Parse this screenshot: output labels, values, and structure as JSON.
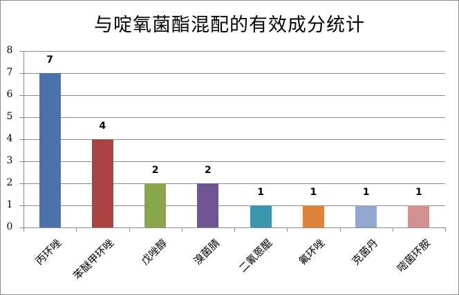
{
  "chart_data": {
    "type": "bar",
    "title": "与啶氧菌酯混配的有效成分统计",
    "xlabel": "",
    "ylabel": "",
    "ylim": [
      0,
      8
    ],
    "yticks": [
      0,
      1,
      2,
      3,
      4,
      5,
      6,
      7,
      8
    ],
    "grid": true,
    "legend": null,
    "data_labels": true,
    "categories": [
      "丙环唑",
      "苯醚甲环唑",
      "戊唑醇",
      "溴菌腈",
      "二氰蒽醌",
      "氟环唑",
      "克菌丹",
      "嘧菌环胺"
    ],
    "values": [
      7,
      4,
      2,
      2,
      1,
      1,
      1,
      1
    ],
    "colors": [
      "#4a72a8",
      "#aa4341",
      "#89a64c",
      "#705593",
      "#3d97ac",
      "#dc843a",
      "#92a8cf",
      "#d09190"
    ]
  }
}
